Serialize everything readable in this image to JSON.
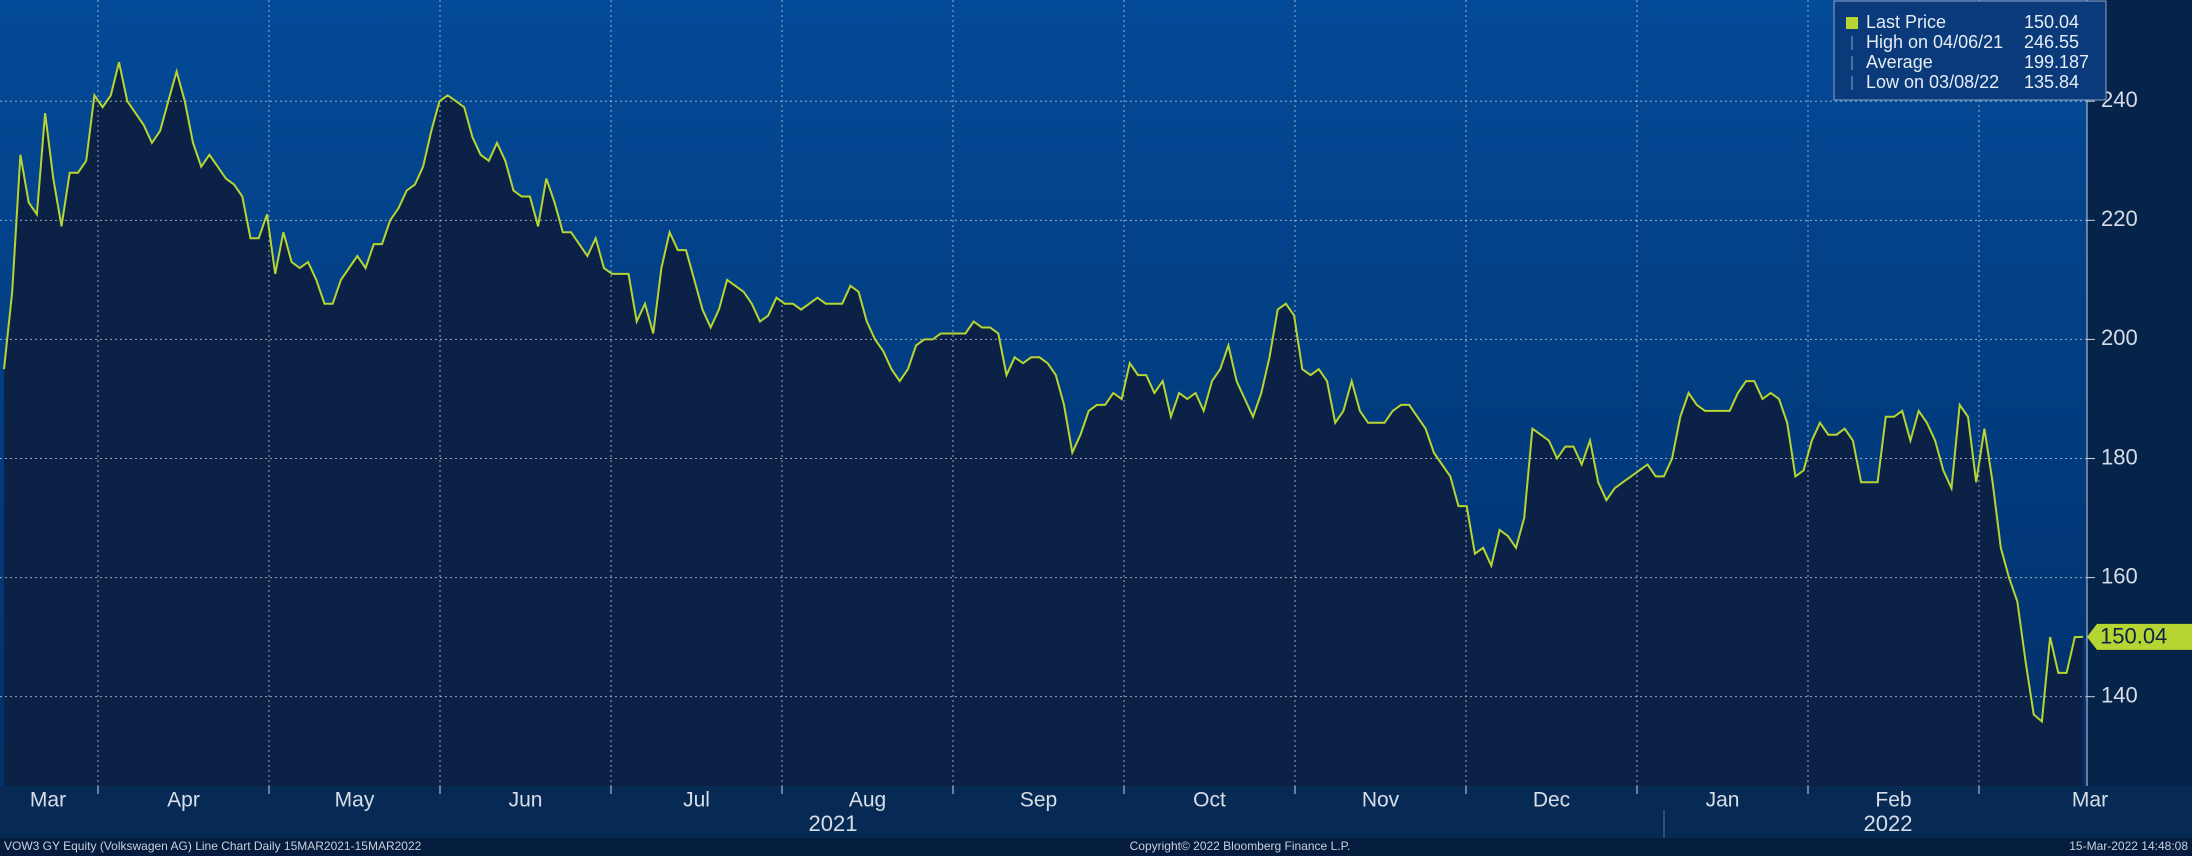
{
  "chart_data": {
    "type": "line",
    "series": [
      {
        "name": "Last Price",
        "color": "#b7d532",
        "values": [
          195,
          208,
          231,
          223,
          221,
          238,
          227,
          219,
          228,
          228,
          230,
          241,
          239,
          241,
          246.55,
          240,
          238,
          236,
          233,
          235,
          240,
          245,
          240,
          233,
          229,
          231,
          229,
          227,
          226,
          224,
          217,
          217,
          221,
          211,
          218,
          213,
          212,
          213,
          210,
          206,
          206,
          210,
          212,
          214,
          212,
          216,
          216,
          220,
          222,
          225,
          226,
          229,
          235,
          240,
          241,
          240,
          239,
          234,
          231,
          230,
          233,
          230,
          225,
          224,
          224,
          219,
          227,
          223,
          218,
          218,
          216,
          214,
          217,
          212,
          211,
          211,
          211,
          203,
          206,
          201,
          212,
          218,
          215,
          215,
          210,
          205,
          202,
          205,
          210,
          209,
          208,
          206,
          203,
          204,
          207,
          206,
          206,
          205,
          206,
          207,
          206,
          206,
          206,
          209,
          208,
          203,
          200,
          198,
          195,
          193,
          195,
          199,
          200,
          200,
          201,
          201,
          201,
          201,
          203,
          202,
          202,
          201,
          194,
          197,
          196,
          197,
          197,
          196,
          194,
          189,
          181,
          184,
          188,
          189,
          189,
          191,
          190,
          196,
          194,
          194,
          191,
          193,
          187,
          191,
          190,
          191,
          188,
          193,
          195,
          199,
          193,
          190,
          187,
          191,
          197,
          205,
          206,
          204,
          195,
          194,
          195,
          193,
          186,
          188,
          193,
          188,
          186,
          186,
          186,
          188,
          189,
          189,
          187,
          185,
          181,
          179,
          177,
          172,
          172,
          164,
          165,
          162,
          168,
          167,
          165,
          170,
          185,
          184,
          183,
          180,
          182,
          182,
          179,
          183,
          176,
          173,
          175,
          176,
          177,
          178,
          179,
          177,
          177,
          180,
          187,
          191,
          189,
          188,
          188,
          188,
          188,
          191,
          193,
          193,
          190,
          191,
          190,
          186,
          177,
          178,
          183,
          186,
          184,
          184,
          185,
          183,
          176,
          176,
          176,
          187,
          187,
          188,
          183,
          188,
          186,
          183,
          178,
          175,
          189,
          187,
          176,
          185,
          176,
          165,
          160,
          156,
          146,
          137,
          135.84,
          150,
          144,
          144,
          150,
          150.04
        ]
      }
    ],
    "ylim": [
      125,
      257
    ],
    "yticks": [
      140,
      160,
      180,
      200,
      220,
      240
    ],
    "grid": true,
    "x_tick_labels": [
      "Mar",
      "Apr",
      "May",
      "Jun",
      "Jul",
      "Aug",
      "Sep",
      "Oct",
      "Nov",
      "Dec",
      "Jan",
      "Feb",
      "Mar"
    ],
    "year_labels": [
      "2021",
      "2022"
    ],
    "legend": [
      {
        "label": "Last Price",
        "value": 150.04
      },
      {
        "label": "High on 04/06/21",
        "value": 246.55
      },
      {
        "label": "Average",
        "value": 199.187
      },
      {
        "label": "Low on 03/08/22",
        "value": 135.84
      }
    ],
    "footer": {
      "left": "VOW3 GY Equity (Volkswagen AG) Line Chart  Daily 15MAR2021-15MAR2022",
      "center": "Copyright© 2022 Bloomberg Finance L.P.",
      "right": "15-Mar-2022 14:48:08"
    }
  }
}
